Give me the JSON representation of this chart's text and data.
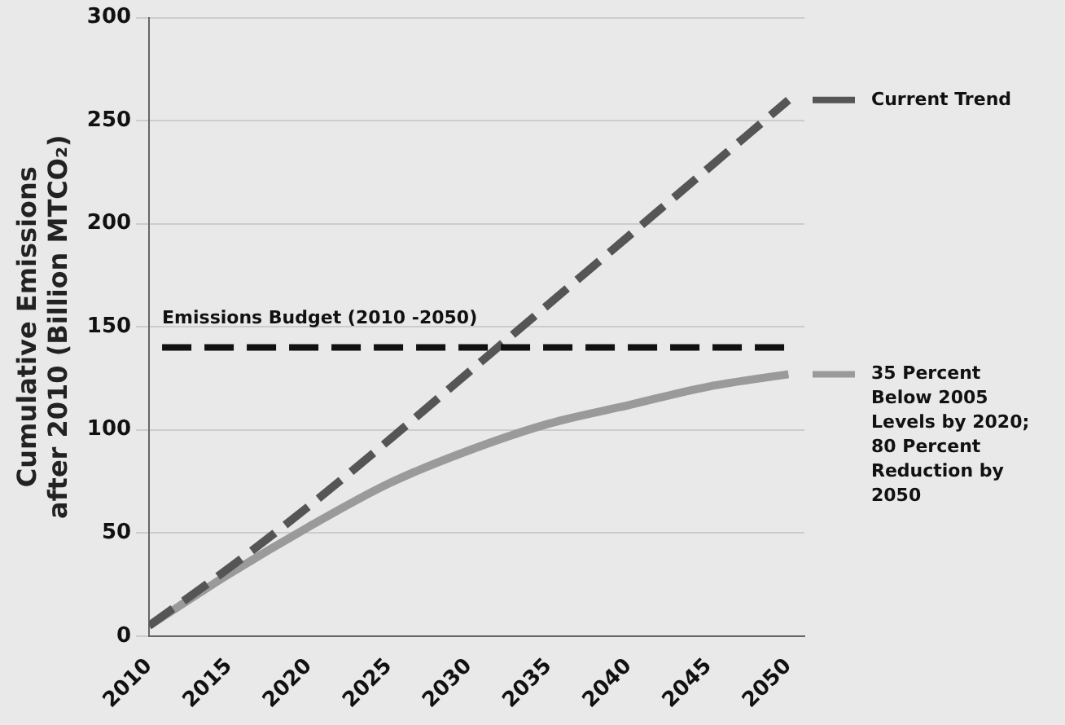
{
  "chart_data": {
    "type": "line",
    "ylabel": "Cumulative Emissions after 2010 (Billion MTCO₂)",
    "x": [
      2010,
      2015,
      2020,
      2025,
      2030,
      2035,
      2040,
      2045,
      2050
    ],
    "series": [
      {
        "name": "Current Trend",
        "color": "#555555",
        "line_style": "dashed",
        "values": [
          5,
          33,
          63,
          95,
          128,
          161,
          194,
          227,
          260
        ]
      },
      {
        "name": "35 Percent Below 2005 Levels by 2020; 80 Percent Reduction by 2050",
        "color": "#9a9a9a",
        "line_style": "solid",
        "values": [
          5,
          30,
          53,
          74,
          90,
          103,
          112,
          121,
          127
        ]
      }
    ],
    "xlim": [
      2010,
      2051
    ],
    "xticks": [
      2010,
      2015,
      2020,
      2025,
      2030,
      2035,
      2040,
      2045,
      2050
    ],
    "ylim": [
      0,
      300
    ],
    "yticks": [
      0,
      50,
      100,
      150,
      200,
      250,
      300
    ],
    "ref_lines": [
      {
        "axis": "y",
        "value": 140,
        "label": "Emissions Budget (2010 -2050)",
        "color": "#111111",
        "line_style": "dashed"
      }
    ],
    "grid": "y",
    "legend": "right",
    "marker": "none"
  }
}
